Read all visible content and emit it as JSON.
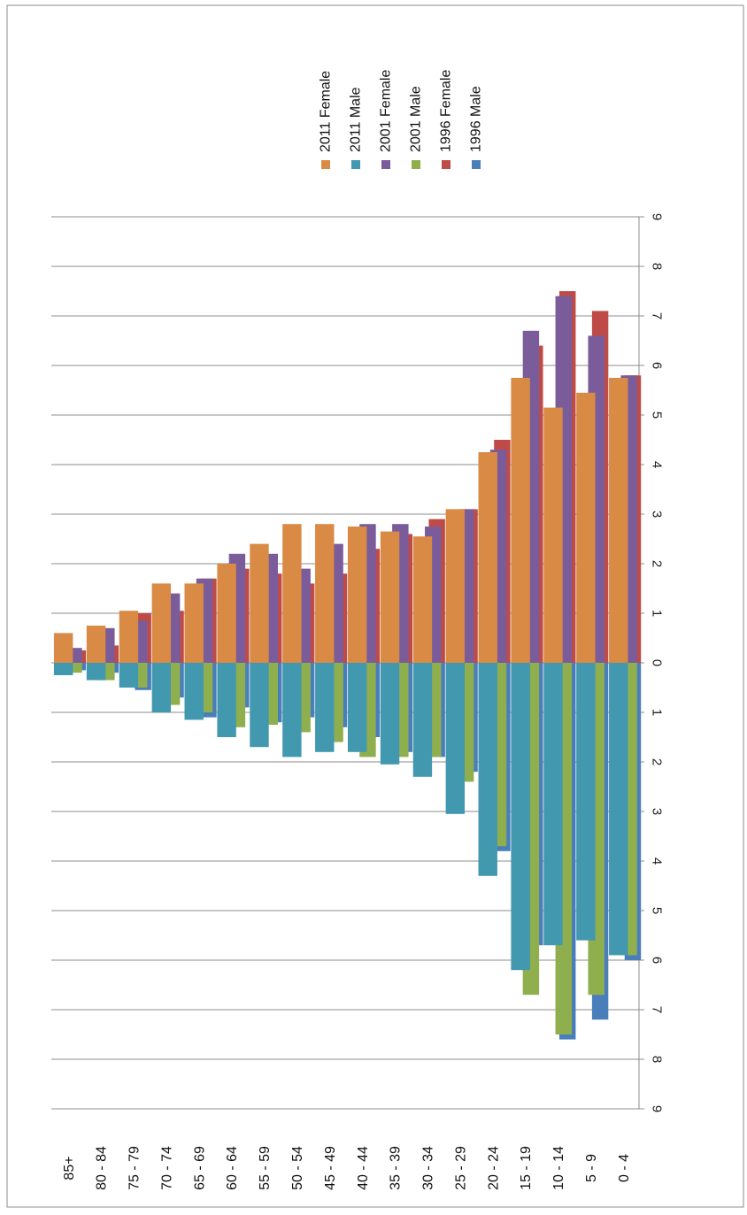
{
  "chart_data": {
    "type": "bar",
    "orientation": "horizontal-pyramid",
    "categories": [
      "85+",
      "80 - 84",
      "75 - 79",
      "70 - 74",
      "65 - 69",
      "60 - 64",
      "55 - 59",
      "50 - 54",
      "45 - 49",
      "40 - 44",
      "35 - 39",
      "30 - 34",
      "25 - 29",
      "20 - 24",
      "15 - 19",
      "10 - 14",
      "5 - 9",
      "0 - 4"
    ],
    "value_axis": {
      "min": -9,
      "max": 9,
      "step": 1,
      "tick_labels": [
        "9",
        "8",
        "7",
        "6",
        "5",
        "4",
        "3",
        "2",
        "1",
        "0",
        "1",
        "2",
        "3",
        "4",
        "5",
        "6",
        "7",
        "8",
        "9"
      ]
    },
    "grid": true,
    "legend_position": "top-right",
    "series": [
      {
        "name": "1996 Male",
        "color": "#4a7ebb",
        "side": "male",
        "values": [
          0.15,
          0.2,
          0.55,
          0.7,
          1.1,
          0.9,
          1.2,
          1.1,
          1.3,
          1.5,
          1.8,
          1.9,
          2.2,
          3.8,
          5.7,
          7.6,
          7.2,
          6.0
        ]
      },
      {
        "name": "1996 Female",
        "color": "#be4b48",
        "side": "female",
        "values": [
          0.25,
          0.35,
          1.0,
          1.05,
          1.7,
          1.9,
          1.8,
          1.6,
          1.8,
          2.3,
          2.6,
          2.9,
          3.1,
          4.5,
          6.4,
          7.5,
          7.1,
          5.8
        ]
      },
      {
        "name": "2001 Male",
        "color": "#8faf4f",
        "side": "male",
        "values": [
          0.2,
          0.35,
          0.5,
          0.85,
          1.0,
          1.3,
          1.25,
          1.4,
          1.6,
          1.9,
          1.9,
          1.9,
          2.4,
          3.7,
          6.7,
          7.5,
          6.7,
          5.9
        ]
      },
      {
        "name": "2001 Female",
        "color": "#7a5c9b",
        "side": "female",
        "values": [
          0.3,
          0.7,
          0.85,
          1.4,
          1.7,
          2.2,
          2.2,
          1.9,
          2.4,
          2.8,
          2.8,
          2.75,
          3.1,
          4.3,
          6.7,
          7.4,
          6.6,
          5.8
        ]
      },
      {
        "name": "2011 Male",
        "color": "#4198af",
        "side": "male",
        "values": [
          0.25,
          0.35,
          0.5,
          1.0,
          1.15,
          1.5,
          1.7,
          1.9,
          1.8,
          1.8,
          2.05,
          2.3,
          3.05,
          4.3,
          6.2,
          5.7,
          5.6,
          5.9
        ]
      },
      {
        "name": "2011 Female",
        "color": "#d98a44",
        "side": "female",
        "values": [
          0.6,
          0.75,
          1.05,
          1.6,
          1.6,
          2.0,
          2.4,
          2.8,
          2.8,
          2.75,
          2.65,
          2.55,
          3.1,
          4.25,
          5.75,
          5.15,
          5.45,
          5.75
        ]
      }
    ],
    "legend": [
      "2011 Female",
      "2011 Male",
      "2001 Female",
      "2001 Male",
      "1996 Female",
      "1996 Male"
    ]
  },
  "colors": {
    "2011 Female": "#d98a44",
    "2011 Male": "#4198af",
    "2001 Female": "#7a5c9b",
    "2001 Male": "#8faf4f",
    "1996 Female": "#be4b48",
    "1996 Male": "#4a7ebb"
  }
}
